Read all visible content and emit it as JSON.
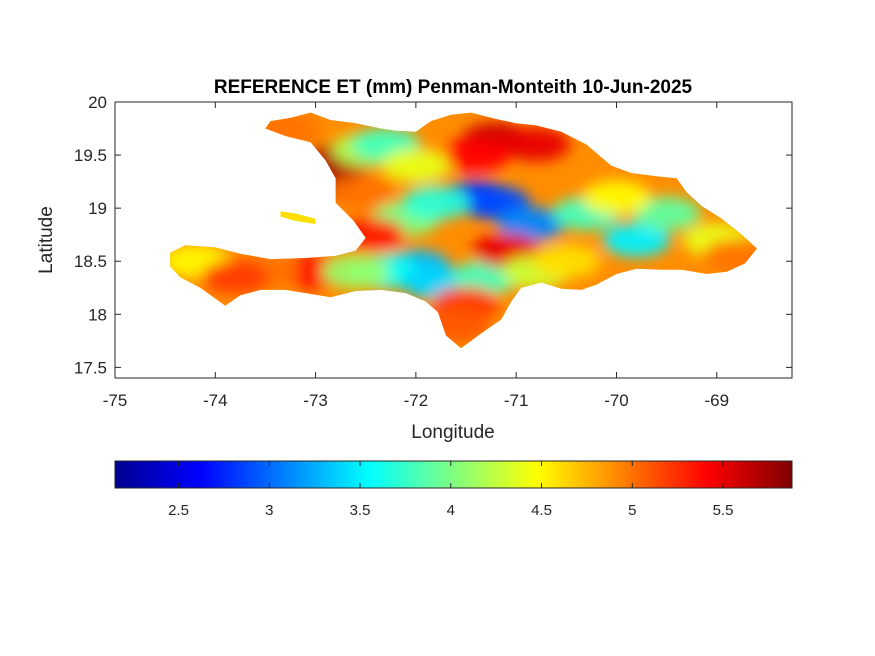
{
  "chart_data": {
    "type": "heatmap",
    "title": "REFERENCE ET (mm) Penman-Monteith 10-Jun-2025",
    "xlabel": "Longitude",
    "ylabel": "Latitude",
    "xlim": [
      -75,
      -68.25
    ],
    "ylim": [
      17.4,
      20
    ],
    "x_ticks": [
      -75,
      -74,
      -73,
      -72,
      -71,
      -70,
      -69
    ],
    "x_tick_labels": [
      "-75",
      "-74",
      "-73",
      "-72",
      "-71",
      "-70",
      "-69"
    ],
    "y_ticks": [
      17.5,
      18,
      18.5,
      19,
      19.5,
      20
    ],
    "y_tick_labels": [
      "17.5",
      "18",
      "18.5",
      "19",
      "19.5",
      "20"
    ],
    "colormap": "jet",
    "colorbar": {
      "orientation": "horizontal",
      "location": "below",
      "range": [
        2.15,
        5.88
      ],
      "ticks": [
        2.5,
        3,
        3.5,
        4,
        4.5,
        5,
        5.5
      ],
      "tick_labels": [
        "2.5",
        "3",
        "3.5",
        "4",
        "4.5",
        "5",
        "5.5"
      ],
      "colors": [
        "#00008f",
        "#0000ff",
        "#0080ff",
        "#00ffff",
        "#80ff80",
        "#ffff00",
        "#ff8000",
        "#ff0000",
        "#800000"
      ]
    },
    "regions": [
      {
        "name": "",
        "value": 4.9,
        "outline": [
          [
            -73.5,
            19.75
          ],
          [
            -73.45,
            19.82
          ],
          [
            -73.25,
            19.85
          ],
          [
            -73.05,
            19.9
          ],
          [
            -72.85,
            19.83
          ],
          [
            -72.6,
            19.8
          ],
          [
            -72.35,
            19.75
          ],
          [
            -72.2,
            19.73
          ],
          [
            -72.0,
            19.72
          ],
          [
            -71.85,
            19.82
          ],
          [
            -71.65,
            19.88
          ],
          [
            -71.45,
            19.9
          ],
          [
            -71.2,
            19.84
          ],
          [
            -71.0,
            19.8
          ],
          [
            -70.8,
            19.78
          ],
          [
            -70.55,
            19.72
          ],
          [
            -70.3,
            19.6
          ],
          [
            -70.05,
            19.4
          ],
          [
            -69.85,
            19.33
          ],
          [
            -69.6,
            19.3
          ],
          [
            -69.4,
            19.28
          ],
          [
            -69.3,
            19.15
          ],
          [
            -69.15,
            19.02
          ],
          [
            -68.95,
            18.9
          ],
          [
            -68.75,
            18.75
          ],
          [
            -68.6,
            18.62
          ],
          [
            -68.72,
            18.48
          ],
          [
            -68.9,
            18.4
          ],
          [
            -69.1,
            18.38
          ],
          [
            -69.35,
            18.42
          ],
          [
            -69.55,
            18.42
          ],
          [
            -69.8,
            18.43
          ],
          [
            -70.0,
            18.38
          ],
          [
            -70.2,
            18.28
          ],
          [
            -70.35,
            18.23
          ],
          [
            -70.55,
            18.24
          ],
          [
            -70.75,
            18.3
          ],
          [
            -70.95,
            18.25
          ],
          [
            -71.05,
            18.12
          ],
          [
            -71.15,
            17.95
          ],
          [
            -71.35,
            17.82
          ],
          [
            -71.55,
            17.68
          ],
          [
            -71.7,
            17.8
          ],
          [
            -71.78,
            18.02
          ],
          [
            -71.9,
            18.12
          ],
          [
            -72.1,
            18.2
          ],
          [
            -72.35,
            18.23
          ],
          [
            -72.6,
            18.22
          ],
          [
            -72.85,
            18.16
          ],
          [
            -73.1,
            18.2
          ],
          [
            -73.3,
            18.23
          ],
          [
            -73.55,
            18.23
          ],
          [
            -73.75,
            18.18
          ],
          [
            -73.9,
            18.08
          ],
          [
            -74.15,
            18.25
          ],
          [
            -74.35,
            18.35
          ],
          [
            -74.45,
            18.45
          ],
          [
            -74.45,
            18.58
          ],
          [
            -74.3,
            18.65
          ],
          [
            -74.0,
            18.63
          ],
          [
            -73.75,
            18.57
          ],
          [
            -73.45,
            18.52
          ],
          [
            -73.1,
            18.53
          ],
          [
            -72.8,
            18.55
          ],
          [
            -72.6,
            18.6
          ],
          [
            -72.5,
            18.72
          ],
          [
            -72.62,
            18.88
          ],
          [
            -72.8,
            19.05
          ],
          [
            -72.8,
            19.28
          ],
          [
            -72.9,
            19.45
          ],
          [
            -73.05,
            19.62
          ],
          [
            -73.3,
            19.68
          ]
        ]
      },
      {
        "name": "",
        "value": 4.6,
        "outline": [
          [
            -73.35,
            18.97
          ],
          [
            -73.2,
            18.95
          ],
          [
            -73.0,
            18.9
          ],
          [
            -73.0,
            18.85
          ],
          [
            -73.2,
            18.88
          ],
          [
            -73.35,
            18.92
          ]
        ]
      }
    ],
    "cells": [
      {
        "lon": -72.9,
        "lat": 19.25,
        "value": 5.8
      },
      {
        "lon": -72.75,
        "lat": 19.45,
        "value": 5.7
      },
      {
        "lon": -71.2,
        "lat": 19.65,
        "value": 5.6
      },
      {
        "lon": -70.8,
        "lat": 19.6,
        "value": 5.5
      },
      {
        "lon": -71.4,
        "lat": 19.5,
        "value": 5.4
      },
      {
        "lon": -72.5,
        "lat": 19.55,
        "value": 4.2
      },
      {
        "lon": -72.3,
        "lat": 19.6,
        "value": 3.8
      },
      {
        "lon": -72.0,
        "lat": 19.4,
        "value": 4.4
      },
      {
        "lon": -71.4,
        "lat": 19.1,
        "value": 2.6
      },
      {
        "lon": -71.2,
        "lat": 19.05,
        "value": 2.9
      },
      {
        "lon": -70.85,
        "lat": 18.85,
        "value": 3.1
      },
      {
        "lon": -70.3,
        "lat": 18.95,
        "value": 3.8
      },
      {
        "lon": -69.8,
        "lat": 18.7,
        "value": 3.5
      },
      {
        "lon": -69.5,
        "lat": 18.95,
        "value": 3.9
      },
      {
        "lon": -69.0,
        "lat": 18.7,
        "value": 4.4
      },
      {
        "lon": -72.1,
        "lat": 18.9,
        "value": 4.0
      },
      {
        "lon": -71.8,
        "lat": 19.05,
        "value": 3.7
      },
      {
        "lon": -72.0,
        "lat": 18.45,
        "value": 3.3
      },
      {
        "lon": -72.3,
        "lat": 18.4,
        "value": 3.6
      },
      {
        "lon": -71.8,
        "lat": 18.3,
        "value": 3.4
      },
      {
        "lon": -71.3,
        "lat": 18.35,
        "value": 3.8
      },
      {
        "lon": -71.5,
        "lat": 18.1,
        "value": 5.2
      },
      {
        "lon": -71.6,
        "lat": 17.9,
        "value": 5.1
      },
      {
        "lon": -71.1,
        "lat": 18.6,
        "value": 5.5
      },
      {
        "lon": -70.8,
        "lat": 18.4,
        "value": 4.3
      },
      {
        "lon": -72.45,
        "lat": 18.75,
        "value": 5.3
      },
      {
        "lon": -73.0,
        "lat": 18.4,
        "value": 5.4
      },
      {
        "lon": -73.5,
        "lat": 18.4,
        "value": 5.0
      },
      {
        "lon": -74.2,
        "lat": 18.5,
        "value": 4.5
      },
      {
        "lon": -73.8,
        "lat": 18.35,
        "value": 5.2
      },
      {
        "lon": -72.6,
        "lat": 18.4,
        "value": 4.1
      },
      {
        "lon": -72.55,
        "lat": 19.15,
        "value": 5.0
      },
      {
        "lon": -70.0,
        "lat": 19.1,
        "value": 4.5
      },
      {
        "lon": -70.5,
        "lat": 18.5,
        "value": 4.6
      },
      {
        "lon": -68.8,
        "lat": 18.55,
        "value": 5.0
      },
      {
        "lon": -73.3,
        "lat": 19.75,
        "value": 5.0
      }
    ]
  }
}
